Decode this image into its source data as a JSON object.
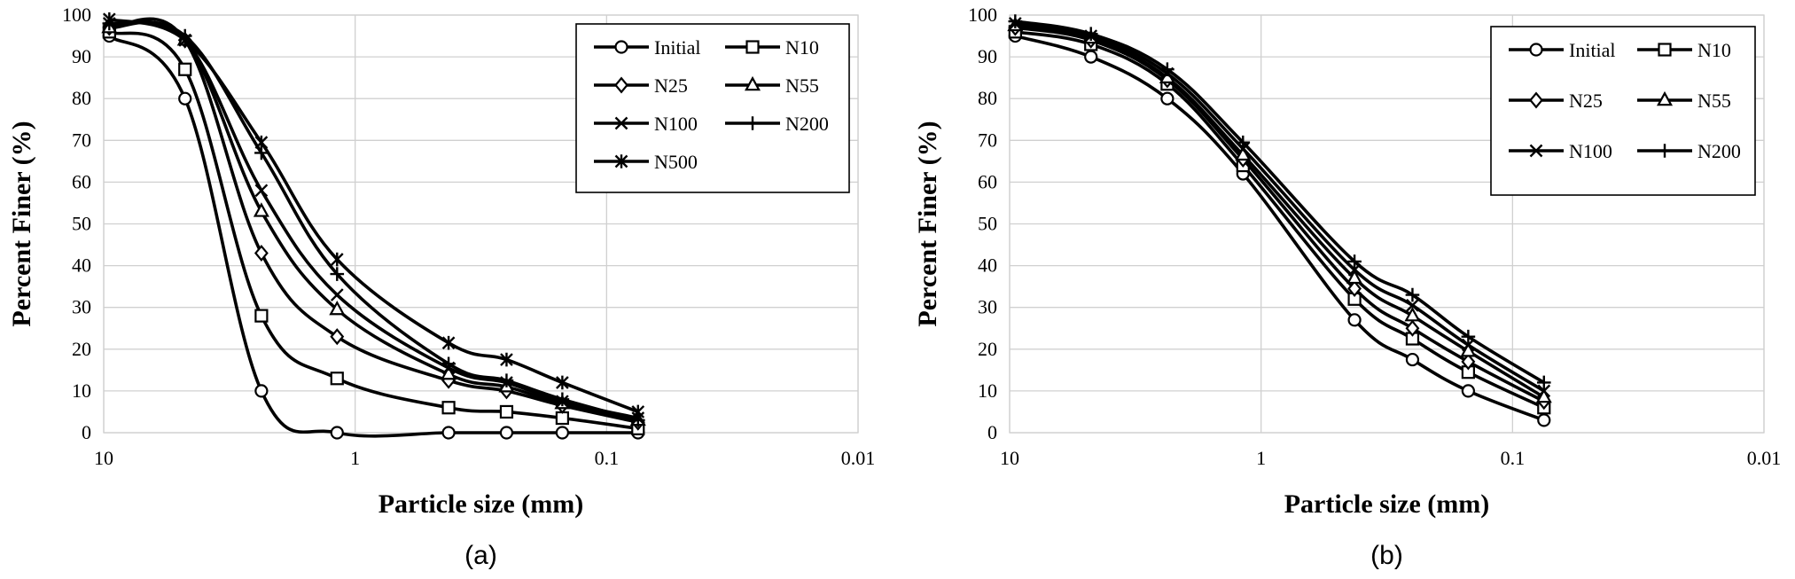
{
  "chart_data": [
    {
      "type": "line",
      "panel_label": "(a)",
      "xlabel": "Particle size (mm)",
      "ylabel": "Percent Finer (%)",
      "x_scale": "log",
      "x_reversed": true,
      "xlim": [
        10,
        0.01
      ],
      "ylim": [
        0,
        100
      ],
      "x_tick_labels": [
        "10",
        "1",
        "0.1",
        "0.01"
      ],
      "y_tick_labels": [
        "0",
        "10",
        "20",
        "30",
        "40",
        "50",
        "60",
        "70",
        "80",
        "90",
        "100"
      ],
      "grid": true,
      "legend_position": "top-right",
      "x": [
        9.5,
        4.75,
        2.36,
        1.18,
        0.425,
        0.25,
        0.15,
        0.075
      ],
      "series": [
        {
          "name": "Initial",
          "marker": "circle",
          "values": [
            95,
            80,
            10,
            0,
            0,
            0,
            0,
            0
          ]
        },
        {
          "name": "N10",
          "marker": "square",
          "values": [
            96,
            87,
            28,
            13,
            6,
            5,
            3.5,
            1
          ]
        },
        {
          "name": "N25",
          "marker": "diamond",
          "values": [
            97,
            94,
            43,
            23,
            12.5,
            10,
            6.5,
            2.5
          ]
        },
        {
          "name": "N55",
          "marker": "triangle",
          "values": [
            97,
            94,
            53,
            29.5,
            14,
            11,
            7,
            3
          ]
        },
        {
          "name": "N100",
          "marker": "x",
          "values": [
            98,
            94,
            58,
            33,
            15.5,
            12,
            7.5,
            3.5
          ]
        },
        {
          "name": "N200",
          "marker": "plus",
          "values": [
            98,
            95,
            67,
            38,
            16.5,
            12.5,
            8,
            3
          ]
        },
        {
          "name": "N500",
          "marker": "star",
          "values": [
            99,
            94,
            69.5,
            41.5,
            21.5,
            17.5,
            12,
            5
          ]
        }
      ]
    },
    {
      "type": "line",
      "panel_label": "(b)",
      "xlabel": "Particle size (mm)",
      "ylabel": "Percent Finer (%)",
      "x_scale": "log",
      "x_reversed": true,
      "xlim": [
        10,
        0.01
      ],
      "ylim": [
        0,
        100
      ],
      "x_tick_labels": [
        "10",
        "1",
        "0.1",
        "0.01"
      ],
      "y_tick_labels": [
        "0",
        "10",
        "20",
        "30",
        "40",
        "50",
        "60",
        "70",
        "80",
        "90",
        "100"
      ],
      "grid": true,
      "legend_position": "top-right",
      "x": [
        9.5,
        4.75,
        2.36,
        1.18,
        0.425,
        0.25,
        0.15,
        0.075
      ],
      "series": [
        {
          "name": "Initial",
          "marker": "circle",
          "values": [
            95,
            90,
            80,
            62,
            27,
            17.5,
            10,
            3
          ]
        },
        {
          "name": "N10",
          "marker": "square",
          "values": [
            96,
            93,
            83.5,
            64,
            32,
            22.5,
            14.5,
            6
          ]
        },
        {
          "name": "N25",
          "marker": "diamond",
          "values": [
            97,
            94,
            84.5,
            65.5,
            34.5,
            25,
            17,
            7.5
          ]
        },
        {
          "name": "N55",
          "marker": "triangle",
          "values": [
            97.5,
            94.5,
            85,
            66.5,
            37,
            28,
            19.5,
            8.5
          ]
        },
        {
          "name": "N100",
          "marker": "x",
          "values": [
            98,
            95,
            86,
            68,
            39,
            30.5,
            21,
            10
          ]
        },
        {
          "name": "N200",
          "marker": "plus",
          "values": [
            98.5,
            95.5,
            87,
            69.5,
            41,
            33,
            23,
            12
          ]
        }
      ]
    }
  ]
}
